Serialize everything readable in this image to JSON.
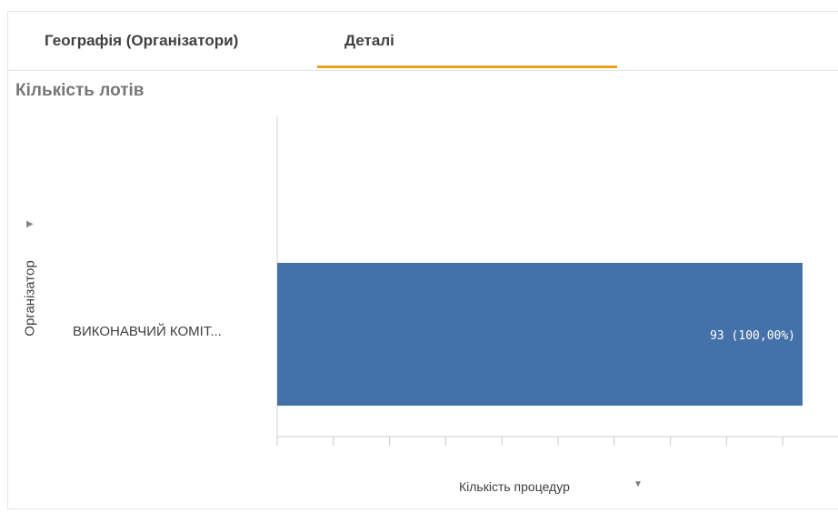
{
  "tabs": [
    {
      "label": "Географія (Організатори)",
      "active": false
    },
    {
      "label": "Деталі",
      "active": true
    }
  ],
  "colors": {
    "accent": "#e8a220",
    "bar": "#4472a8"
  },
  "chart_data": {
    "type": "bar",
    "orientation": "horizontal",
    "title": "Кількість лотів",
    "ylabel": "Організатор",
    "xlabel": "Кількість процедур",
    "categories": [
      "ВИКОНАВЧИЙ КОМІТ..."
    ],
    "values": [
      93
    ],
    "data_labels": [
      "93 (100,00%)"
    ],
    "xlim": [
      0,
      93
    ],
    "grid": false
  }
}
